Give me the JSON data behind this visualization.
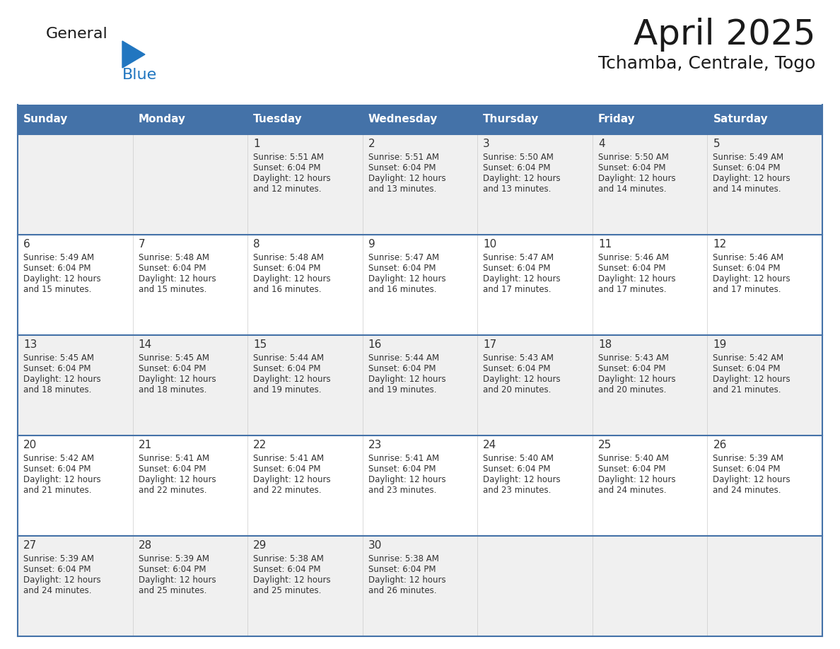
{
  "title": "April 2025",
  "subtitle": "Tchamba, Centrale, Togo",
  "days_of_week": [
    "Sunday",
    "Monday",
    "Tuesday",
    "Wednesday",
    "Thursday",
    "Friday",
    "Saturday"
  ],
  "header_bg": "#4472a8",
  "header_text": "#ffffff",
  "cell_bg_light": "#f0f0f0",
  "cell_bg_white": "#ffffff",
  "border_color": "#4472a8",
  "text_color": "#333333",
  "calendar_data": [
    [
      null,
      null,
      {
        "day": 1,
        "sunrise": "5:51 AM",
        "sunset": "6:04 PM",
        "daylight": "12 hours and 12 minutes"
      },
      {
        "day": 2,
        "sunrise": "5:51 AM",
        "sunset": "6:04 PM",
        "daylight": "12 hours and 13 minutes"
      },
      {
        "day": 3,
        "sunrise": "5:50 AM",
        "sunset": "6:04 PM",
        "daylight": "12 hours and 13 minutes"
      },
      {
        "day": 4,
        "sunrise": "5:50 AM",
        "sunset": "6:04 PM",
        "daylight": "12 hours and 14 minutes"
      },
      {
        "day": 5,
        "sunrise": "5:49 AM",
        "sunset": "6:04 PM",
        "daylight": "12 hours and 14 minutes"
      }
    ],
    [
      {
        "day": 6,
        "sunrise": "5:49 AM",
        "sunset": "6:04 PM",
        "daylight": "12 hours and 15 minutes"
      },
      {
        "day": 7,
        "sunrise": "5:48 AM",
        "sunset": "6:04 PM",
        "daylight": "12 hours and 15 minutes"
      },
      {
        "day": 8,
        "sunrise": "5:48 AM",
        "sunset": "6:04 PM",
        "daylight": "12 hours and 16 minutes"
      },
      {
        "day": 9,
        "sunrise": "5:47 AM",
        "sunset": "6:04 PM",
        "daylight": "12 hours and 16 minutes"
      },
      {
        "day": 10,
        "sunrise": "5:47 AM",
        "sunset": "6:04 PM",
        "daylight": "12 hours and 17 minutes"
      },
      {
        "day": 11,
        "sunrise": "5:46 AM",
        "sunset": "6:04 PM",
        "daylight": "12 hours and 17 minutes"
      },
      {
        "day": 12,
        "sunrise": "5:46 AM",
        "sunset": "6:04 PM",
        "daylight": "12 hours and 17 minutes"
      }
    ],
    [
      {
        "day": 13,
        "sunrise": "5:45 AM",
        "sunset": "6:04 PM",
        "daylight": "12 hours and 18 minutes"
      },
      {
        "day": 14,
        "sunrise": "5:45 AM",
        "sunset": "6:04 PM",
        "daylight": "12 hours and 18 minutes"
      },
      {
        "day": 15,
        "sunrise": "5:44 AM",
        "sunset": "6:04 PM",
        "daylight": "12 hours and 19 minutes"
      },
      {
        "day": 16,
        "sunrise": "5:44 AM",
        "sunset": "6:04 PM",
        "daylight": "12 hours and 19 minutes"
      },
      {
        "day": 17,
        "sunrise": "5:43 AM",
        "sunset": "6:04 PM",
        "daylight": "12 hours and 20 minutes"
      },
      {
        "day": 18,
        "sunrise": "5:43 AM",
        "sunset": "6:04 PM",
        "daylight": "12 hours and 20 minutes"
      },
      {
        "day": 19,
        "sunrise": "5:42 AM",
        "sunset": "6:04 PM",
        "daylight": "12 hours and 21 minutes"
      }
    ],
    [
      {
        "day": 20,
        "sunrise": "5:42 AM",
        "sunset": "6:04 PM",
        "daylight": "12 hours and 21 minutes"
      },
      {
        "day": 21,
        "sunrise": "5:41 AM",
        "sunset": "6:04 PM",
        "daylight": "12 hours and 22 minutes"
      },
      {
        "day": 22,
        "sunrise": "5:41 AM",
        "sunset": "6:04 PM",
        "daylight": "12 hours and 22 minutes"
      },
      {
        "day": 23,
        "sunrise": "5:41 AM",
        "sunset": "6:04 PM",
        "daylight": "12 hours and 23 minutes"
      },
      {
        "day": 24,
        "sunrise": "5:40 AM",
        "sunset": "6:04 PM",
        "daylight": "12 hours and 23 minutes"
      },
      {
        "day": 25,
        "sunrise": "5:40 AM",
        "sunset": "6:04 PM",
        "daylight": "12 hours and 24 minutes"
      },
      {
        "day": 26,
        "sunrise": "5:39 AM",
        "sunset": "6:04 PM",
        "daylight": "12 hours and 24 minutes"
      }
    ],
    [
      {
        "day": 27,
        "sunrise": "5:39 AM",
        "sunset": "6:04 PM",
        "daylight": "12 hours and 24 minutes"
      },
      {
        "day": 28,
        "sunrise": "5:39 AM",
        "sunset": "6:04 PM",
        "daylight": "12 hours and 25 minutes"
      },
      {
        "day": 29,
        "sunrise": "5:38 AM",
        "sunset": "6:04 PM",
        "daylight": "12 hours and 25 minutes"
      },
      {
        "day": 30,
        "sunrise": "5:38 AM",
        "sunset": "6:04 PM",
        "daylight": "12 hours and 26 minutes"
      },
      null,
      null,
      null
    ]
  ],
  "logo_blue": "#2176c0",
  "logo_dark": "#1a1a1a"
}
